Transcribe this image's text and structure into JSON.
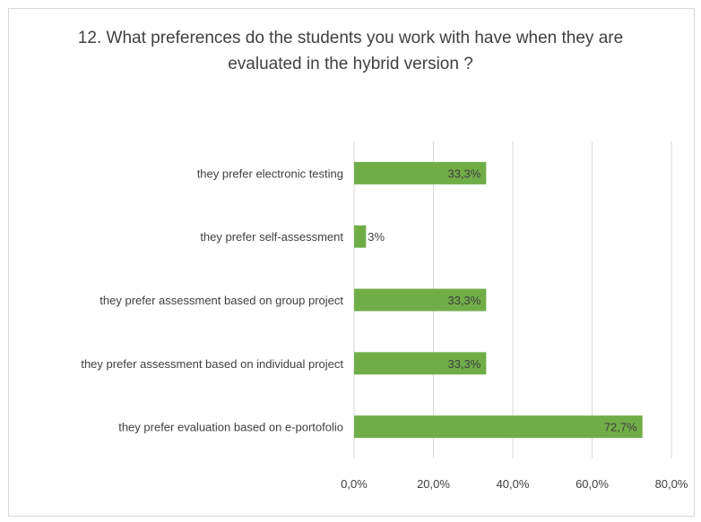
{
  "chart_data": {
    "type": "bar",
    "orientation": "horizontal",
    "title_line1": "12. What preferences do the students you work with have when they are",
    "title_line2": "evaluated in the hybrid version ?",
    "categories": [
      "they prefer electronic testing",
      "they prefer self-assessment",
      "they prefer assessment based on group project",
      "they prefer assessment based on individual project",
      "they prefer evaluation based on e-portofolio"
    ],
    "values": [
      33.3,
      3,
      33.3,
      33.3,
      72.7
    ],
    "data_labels": [
      "33,3%",
      "3%",
      "33,3%",
      "33,3%",
      "72,7%"
    ],
    "xlim": [
      0,
      80
    ],
    "x_ticks": [
      0,
      20,
      40,
      60,
      80
    ],
    "x_tick_labels": [
      "0,0%",
      "20,0%",
      "40,0%",
      "60,0%",
      "80,0%"
    ],
    "grid": true,
    "legend": "none",
    "bar_color": "#70ad47",
    "text_color": "#404040",
    "grid_color": "#d9d9d9"
  }
}
